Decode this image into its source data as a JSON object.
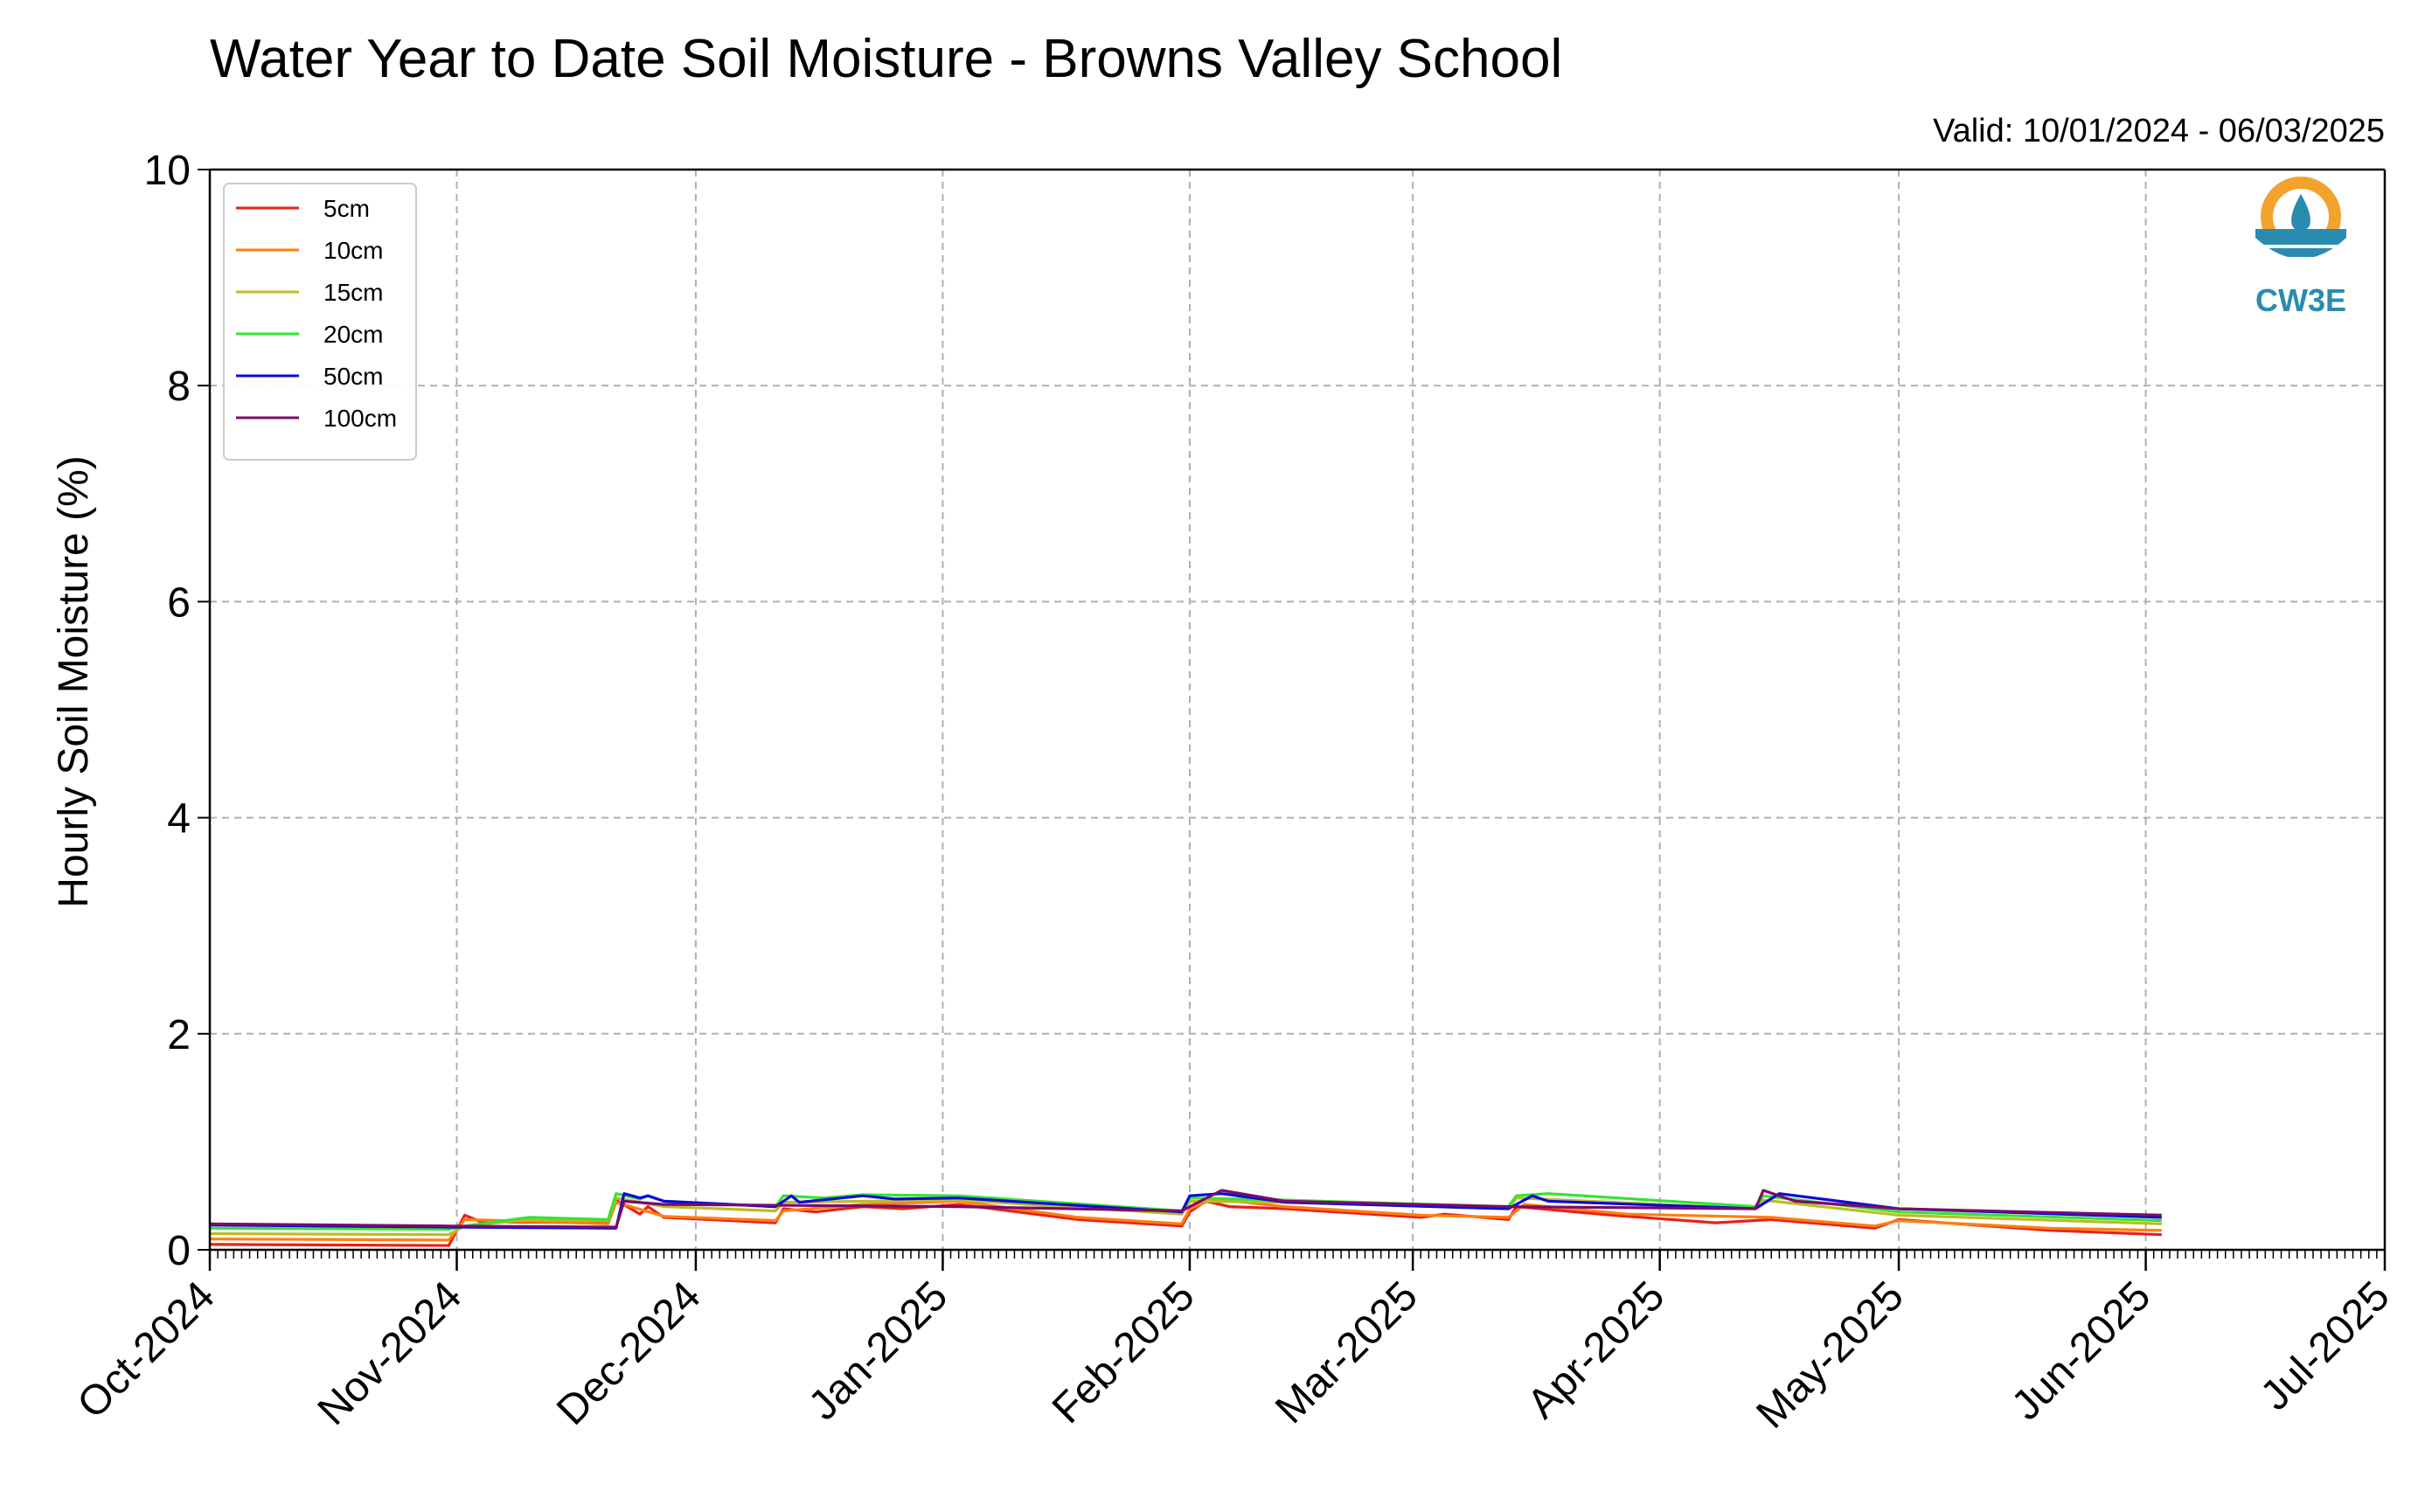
{
  "chart_data": {
    "type": "line",
    "title": "Water Year to Date Soil Moisture - Browns Valley School",
    "subtitle": "Valid: 10/01/2024 - 06/03/2025",
    "ylabel": "Hourly Soil Moisture (%)",
    "xlabel": "",
    "ylim": [
      0,
      10
    ],
    "xlim": [
      "2024-10-01",
      "2025-07-01"
    ],
    "grid": true,
    "legend_position": "top-left",
    "logo_text": "CW3E",
    "x_ticks": [
      {
        "date": "2024-10-01",
        "label": "Oct-2024"
      },
      {
        "date": "2024-11-01",
        "label": "Nov-2024"
      },
      {
        "date": "2024-12-01",
        "label": "Dec-2024"
      },
      {
        "date": "2025-01-01",
        "label": "Jan-2025"
      },
      {
        "date": "2025-02-01",
        "label": "Feb-2025"
      },
      {
        "date": "2025-03-01",
        "label": "Mar-2025"
      },
      {
        "date": "2025-04-01",
        "label": "Apr-2025"
      },
      {
        "date": "2025-05-01",
        "label": "May-2025"
      },
      {
        "date": "2025-06-01",
        "label": "Jun-2025"
      },
      {
        "date": "2025-07-01",
        "label": "Jul-2025"
      }
    ],
    "y_ticks": [
      {
        "value": 0,
        "label": "0"
      },
      {
        "value": 2,
        "label": "2"
      },
      {
        "value": 4,
        "label": "4"
      },
      {
        "value": 6,
        "label": "6"
      },
      {
        "value": 8,
        "label": "8"
      },
      {
        "value": 10,
        "label": "10"
      }
    ],
    "series": [
      {
        "name": "5cm",
        "color": "#e8211b",
        "points": [
          [
            "2024-10-01",
            0.05
          ],
          [
            "2024-10-31",
            0.04
          ],
          [
            "2024-11-02",
            0.32
          ],
          [
            "2024-11-04",
            0.26
          ],
          [
            "2024-11-20",
            0.25
          ],
          [
            "2024-11-21",
            0.46
          ],
          [
            "2024-11-24",
            0.33
          ],
          [
            "2024-11-25",
            0.4
          ],
          [
            "2024-11-27",
            0.3
          ],
          [
            "2024-12-11",
            0.25
          ],
          [
            "2024-12-12",
            0.38
          ],
          [
            "2024-12-16",
            0.35
          ],
          [
            "2024-12-22",
            0.4
          ],
          [
            "2024-12-27",
            0.38
          ],
          [
            "2025-01-03",
            0.42
          ],
          [
            "2025-01-18",
            0.28
          ],
          [
            "2025-01-31",
            0.22
          ],
          [
            "2025-02-01",
            0.35
          ],
          [
            "2025-02-03",
            0.45
          ],
          [
            "2025-02-06",
            0.4
          ],
          [
            "2025-02-13",
            0.38
          ],
          [
            "2025-03-02",
            0.3
          ],
          [
            "2025-03-05",
            0.33
          ],
          [
            "2025-03-13",
            0.28
          ],
          [
            "2025-03-14",
            0.4
          ],
          [
            "2025-03-26",
            0.32
          ],
          [
            "2025-04-08",
            0.25
          ],
          [
            "2025-04-15",
            0.28
          ],
          [
            "2025-04-28",
            0.2
          ],
          [
            "2025-05-01",
            0.28
          ],
          [
            "2025-05-20",
            0.18
          ],
          [
            "2025-06-03",
            0.14
          ]
        ]
      },
      {
        "name": "10cm",
        "color": "#ff7f0e",
        "points": [
          [
            "2024-10-01",
            0.1
          ],
          [
            "2024-10-31",
            0.09
          ],
          [
            "2024-11-02",
            0.28
          ],
          [
            "2024-11-20",
            0.24
          ],
          [
            "2024-11-21",
            0.44
          ],
          [
            "2024-11-27",
            0.31
          ],
          [
            "2024-12-11",
            0.27
          ],
          [
            "2024-12-12",
            0.36
          ],
          [
            "2024-12-22",
            0.42
          ],
          [
            "2025-01-03",
            0.45
          ],
          [
            "2025-01-18",
            0.3
          ],
          [
            "2025-01-31",
            0.24
          ],
          [
            "2025-02-01",
            0.38
          ],
          [
            "2025-02-04",
            0.47
          ],
          [
            "2025-02-13",
            0.4
          ],
          [
            "2025-03-02",
            0.32
          ],
          [
            "2025-03-13",
            0.3
          ],
          [
            "2025-03-15",
            0.42
          ],
          [
            "2025-03-28",
            0.33
          ],
          [
            "2025-04-15",
            0.3
          ],
          [
            "2025-04-28",
            0.22
          ],
          [
            "2025-05-01",
            0.27
          ],
          [
            "2025-05-20",
            0.2
          ],
          [
            "2025-06-03",
            0.18
          ]
        ]
      },
      {
        "name": "15cm",
        "color": "#bcbd22",
        "points": [
          [
            "2024-10-01",
            0.15
          ],
          [
            "2024-10-31",
            0.14
          ],
          [
            "2024-11-02",
            0.22
          ],
          [
            "2024-11-10",
            0.28
          ],
          [
            "2024-11-20",
            0.27
          ],
          [
            "2024-11-21",
            0.48
          ],
          [
            "2024-11-27",
            0.4
          ],
          [
            "2024-12-11",
            0.36
          ],
          [
            "2024-12-12",
            0.44
          ],
          [
            "2025-01-03",
            0.46
          ],
          [
            "2025-01-31",
            0.33
          ],
          [
            "2025-02-01",
            0.45
          ],
          [
            "2025-02-13",
            0.44
          ],
          [
            "2025-03-13",
            0.38
          ],
          [
            "2025-03-14",
            0.48
          ],
          [
            "2025-04-13",
            0.38
          ],
          [
            "2025-04-14",
            0.46
          ],
          [
            "2025-05-01",
            0.32
          ],
          [
            "2025-06-03",
            0.24
          ]
        ]
      },
      {
        "name": "20cm",
        "color": "#33e433",
        "points": [
          [
            "2024-10-01",
            0.2
          ],
          [
            "2024-10-31",
            0.19
          ],
          [
            "2024-11-02",
            0.22
          ],
          [
            "2024-11-10",
            0.3
          ],
          [
            "2024-11-20",
            0.28
          ],
          [
            "2024-11-21",
            0.52
          ],
          [
            "2024-11-24",
            0.47
          ],
          [
            "2024-11-25",
            0.5
          ],
          [
            "2024-11-27",
            0.45
          ],
          [
            "2024-12-11",
            0.4
          ],
          [
            "2024-12-12",
            0.5
          ],
          [
            "2024-12-17",
            0.48
          ],
          [
            "2024-12-22",
            0.51
          ],
          [
            "2025-01-03",
            0.5
          ],
          [
            "2025-01-31",
            0.36
          ],
          [
            "2025-02-01",
            0.48
          ],
          [
            "2025-02-13",
            0.46
          ],
          [
            "2025-03-13",
            0.4
          ],
          [
            "2025-03-14",
            0.5
          ],
          [
            "2025-03-18",
            0.52
          ],
          [
            "2025-04-13",
            0.4
          ],
          [
            "2025-04-14",
            0.5
          ],
          [
            "2025-05-01",
            0.35
          ],
          [
            "2025-06-03",
            0.27
          ]
        ]
      },
      {
        "name": "50cm",
        "color": "#0a0adc",
        "points": [
          [
            "2024-10-01",
            0.23
          ],
          [
            "2024-10-31",
            0.21
          ],
          [
            "2024-11-21",
            0.2
          ],
          [
            "2024-11-22",
            0.52
          ],
          [
            "2024-11-24",
            0.48
          ],
          [
            "2024-11-25",
            0.5
          ],
          [
            "2024-11-27",
            0.45
          ],
          [
            "2024-12-11",
            0.4
          ],
          [
            "2024-12-13",
            0.5
          ],
          [
            "2024-12-14",
            0.44
          ],
          [
            "2024-12-22",
            0.5
          ],
          [
            "2024-12-26",
            0.47
          ],
          [
            "2025-01-03",
            0.48
          ],
          [
            "2025-01-31",
            0.35
          ],
          [
            "2025-02-01",
            0.5
          ],
          [
            "2025-02-05",
            0.52
          ],
          [
            "2025-02-13",
            0.44
          ],
          [
            "2025-03-13",
            0.38
          ],
          [
            "2025-03-16",
            0.5
          ],
          [
            "2025-03-18",
            0.45
          ],
          [
            "2025-04-13",
            0.38
          ],
          [
            "2025-04-16",
            0.52
          ],
          [
            "2025-05-01",
            0.38
          ],
          [
            "2025-06-03",
            0.3
          ]
        ]
      },
      {
        "name": "100cm",
        "color": "#7b0b6b",
        "points": [
          [
            "2024-10-01",
            0.24
          ],
          [
            "2024-10-31",
            0.22
          ],
          [
            "2024-11-21",
            0.21
          ],
          [
            "2024-11-22",
            0.45
          ],
          [
            "2024-11-27",
            0.42
          ],
          [
            "2025-01-03",
            0.4
          ],
          [
            "2025-01-31",
            0.36
          ],
          [
            "2025-02-01",
            0.4
          ],
          [
            "2025-02-05",
            0.55
          ],
          [
            "2025-02-13",
            0.45
          ],
          [
            "2025-03-13",
            0.4
          ],
          [
            "2025-04-13",
            0.38
          ],
          [
            "2025-04-14",
            0.55
          ],
          [
            "2025-04-18",
            0.45
          ],
          [
            "2025-05-01",
            0.38
          ],
          [
            "2025-06-03",
            0.32
          ]
        ]
      }
    ]
  }
}
